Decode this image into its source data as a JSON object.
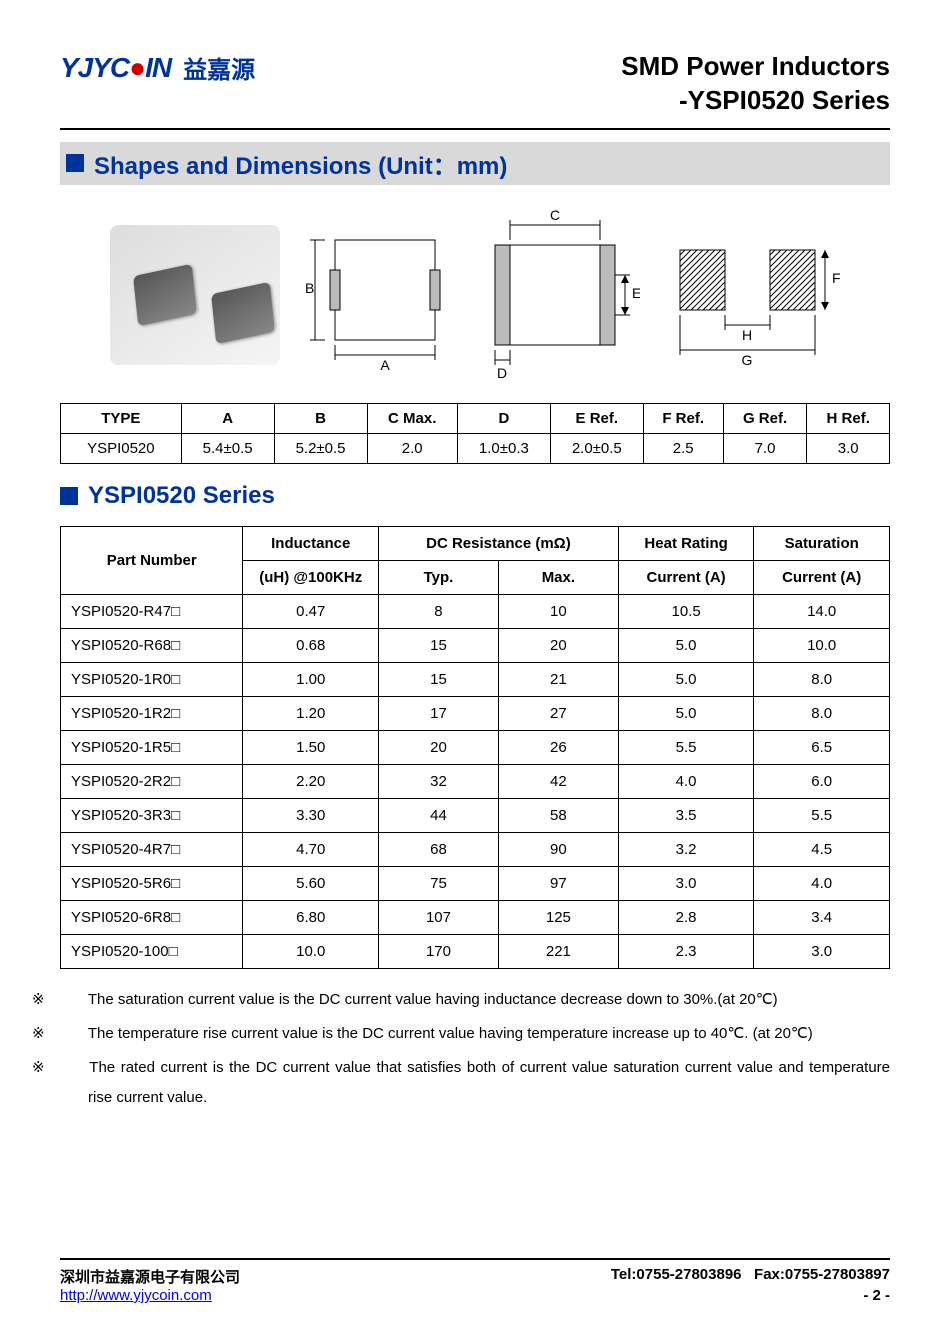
{
  "logo": {
    "text_main": "YJYC",
    "text_red": "●",
    "text_tail": "IN",
    "cn": "益嘉源"
  },
  "header": {
    "line1": "SMD Power Inductors",
    "line2": "-YSPI0520 Series"
  },
  "sections": {
    "shapes": "Shapes and Dimensions (Unit：mm)",
    "series": "YSPI0520 Series"
  },
  "diagram_labels": {
    "A": "A",
    "B": "B",
    "C": "C",
    "D": "D",
    "E": "E",
    "F": "F",
    "G": "G",
    "H": "H"
  },
  "dim_table": {
    "headers": [
      "TYPE",
      "A",
      "B",
      "C Max.",
      "D",
      "E Ref.",
      "F Ref.",
      "G Ref.",
      "H Ref."
    ],
    "row": [
      "YSPI0520",
      "5.4±0.5",
      "5.2±0.5",
      "2.0",
      "1.0±0.3",
      "2.0±0.5",
      "2.5",
      "7.0",
      "3.0"
    ]
  },
  "series_table": {
    "header_top": {
      "part": "Part Number",
      "inductance_top": "Inductance",
      "inductance_bot": "(uH) @100KHz",
      "dcr": "DC Resistance (mΩ)",
      "typ": "Typ.",
      "max": "Max.",
      "heat_top": "Heat Rating",
      "heat_bot": "Current (A)",
      "sat_top": "Saturation",
      "sat_bot": "Current (A)"
    },
    "rows": [
      [
        "YSPI0520-R47□",
        "0.47",
        "8",
        "10",
        "10.5",
        "14.0"
      ],
      [
        "YSPI0520-R68□",
        "0.68",
        "15",
        "20",
        "5.0",
        "10.0"
      ],
      [
        "YSPI0520-1R0□",
        "1.00",
        "15",
        "21",
        "5.0",
        "8.0"
      ],
      [
        "YSPI0520-1R2□",
        "1.20",
        "17",
        "27",
        "5.0",
        "8.0"
      ],
      [
        "YSPI0520-1R5□",
        "1.50",
        "20",
        "26",
        "5.5",
        "6.5"
      ],
      [
        "YSPI0520-2R2□",
        "2.20",
        "32",
        "42",
        "4.0",
        "6.0"
      ],
      [
        "YSPI0520-3R3□",
        "3.30",
        "44",
        "58",
        "3.5",
        "5.5"
      ],
      [
        "YSPI0520-4R7□",
        "4.70",
        "68",
        "90",
        "3.2",
        "4.5"
      ],
      [
        "YSPI0520-5R6□",
        "5.60",
        "75",
        "97",
        "3.0",
        "4.0"
      ],
      [
        "YSPI0520-6R8□",
        "6.80",
        "107",
        "125",
        "2.8",
        "3.4"
      ],
      [
        "YSPI0520-100□",
        "10.0",
        "170",
        "221",
        "2.3",
        "3.0"
      ]
    ]
  },
  "notes": [
    "The saturation current value is the DC current value having inductance decrease down to 30%.(at 20℃)",
    "The temperature rise current value is the DC current value having temperature increase up to 40℃. (at 20℃)",
    "The rated current is the DC current value that satisfies both of current value saturation current value and temperature rise current value."
  ],
  "note_symbol": "※",
  "footer": {
    "company": "深圳市益嘉源电子有限公司",
    "tel": "Tel:0755-27803896",
    "fax": "Fax:0755-27803897",
    "url": "http://www.yjycoin.com",
    "page": "- 2 -"
  },
  "colors": {
    "brand_blue": "#003399",
    "section_bg": "#d9d9d9",
    "link": "#0000ee"
  }
}
